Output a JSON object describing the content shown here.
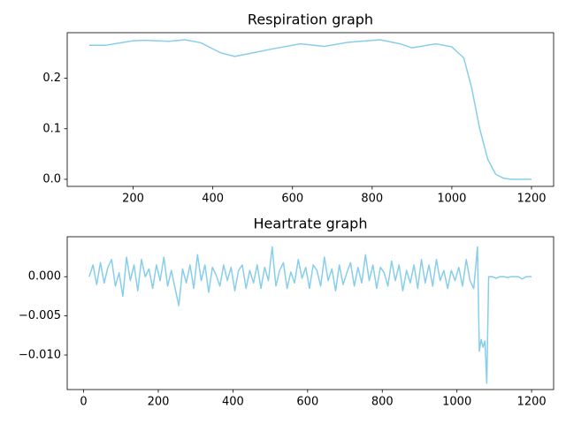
{
  "chart_data": [
    {
      "type": "line",
      "title": "Respiration graph",
      "color": "#87ceeb",
      "x": [
        90,
        130,
        200,
        230,
        290,
        330,
        370,
        420,
        455,
        500,
        550,
        620,
        680,
        740,
        820,
        870,
        900,
        960,
        1000,
        1030,
        1050,
        1070,
        1090,
        1110,
        1130,
        1150,
        1200
      ],
      "values": [
        0.265,
        0.265,
        0.274,
        0.275,
        0.273,
        0.276,
        0.27,
        0.25,
        0.243,
        0.25,
        0.258,
        0.268,
        0.263,
        0.271,
        0.276,
        0.268,
        0.26,
        0.268,
        0.262,
        0.24,
        0.18,
        0.1,
        0.04,
        0.01,
        0.002,
        0,
        0
      ],
      "xlim": [
        34.5,
        1255.5
      ],
      "ylim": [
        -0.014,
        0.29
      ],
      "xticks": [
        200,
        400,
        600,
        800,
        1000,
        1200
      ],
      "yticks": [
        {
          "value": 0,
          "label": "0.0"
        },
        0.1,
        0.2
      ]
    },
    {
      "type": "line",
      "title": "Heartrate graph",
      "color": "#87ceeb",
      "x": [
        15,
        25,
        35,
        45,
        55,
        65,
        75,
        85,
        95,
        105,
        115,
        125,
        135,
        145,
        155,
        165,
        175,
        185,
        195,
        205,
        215,
        225,
        235,
        245,
        255,
        265,
        275,
        285,
        295,
        305,
        315,
        325,
        335,
        345,
        355,
        365,
        375,
        385,
        395,
        405,
        415,
        425,
        435,
        445,
        455,
        465,
        475,
        485,
        495,
        505,
        515,
        525,
        535,
        545,
        555,
        565,
        575,
        585,
        595,
        605,
        615,
        625,
        635,
        645,
        655,
        665,
        675,
        685,
        695,
        705,
        715,
        725,
        735,
        745,
        755,
        765,
        775,
        785,
        795,
        805,
        815,
        825,
        835,
        845,
        855,
        865,
        875,
        885,
        895,
        905,
        915,
        925,
        935,
        945,
        955,
        965,
        975,
        985,
        995,
        1005,
        1015,
        1025,
        1035,
        1045,
        1055,
        1060,
        1065,
        1070,
        1075,
        1080,
        1085,
        1095,
        1105,
        1115,
        1125,
        1135,
        1145,
        1155,
        1165,
        1175,
        1185,
        1200
      ],
      "values": [
        0.0,
        0.0015,
        -0.001,
        0.0018,
        -0.0008,
        0.0012,
        0.0022,
        -0.0012,
        0.0005,
        -0.0025,
        0.0025,
        -0.0005,
        0.0015,
        -0.0018,
        0.0022,
        0.0,
        0.001,
        -0.0015,
        0.0015,
        -0.0005,
        0.0025,
        -0.0012,
        0.0008,
        -0.0015,
        -0.0037,
        0.001,
        -0.0008,
        0.0015,
        -0.0015,
        0.0028,
        -0.0005,
        0.0015,
        -0.002,
        0.0012,
        0.0002,
        -0.0012,
        0.0015,
        -0.0005,
        0.0012,
        -0.0018,
        0.0008,
        0.0015,
        -0.0015,
        0.0008,
        -0.0008,
        0.0015,
        -0.0015,
        0.0012,
        -0.0005,
        0.0038,
        -0.0012,
        0.0008,
        0.0018,
        -0.0015,
        0.0006,
        -0.0008,
        0.0022,
        -0.0002,
        0.0012,
        -0.0015,
        0.0015,
        0.0008,
        -0.0012,
        0.0025,
        -0.0005,
        0.001,
        -0.0018,
        0.0015,
        -0.001,
        0.0005,
        0.0018,
        -0.0012,
        0.0012,
        -0.0008,
        0.0028,
        -0.0005,
        0.0015,
        -0.0015,
        0.0012,
        0.0005,
        -0.0012,
        0.002,
        -0.0005,
        0.0015,
        -0.0018,
        0.0008,
        -0.0008,
        0.0015,
        -0.0015,
        0.0022,
        -0.0008,
        0.0015,
        -0.0012,
        0.0022,
        -0.0005,
        0.0008,
        -0.0015,
        0.0008,
        -0.0005,
        0.0012,
        -0.0012,
        0.0022,
        -0.0005,
        -0.0015,
        0.0038,
        -0.0095,
        -0.008,
        -0.009,
        -0.0082,
        -0.0136,
        0.0,
        0.0,
        -0.0002,
        0.0,
        0.0,
        -0.0001,
        0.0,
        0.0,
        0.0,
        -0.0003,
        0.0,
        0.0
      ],
      "xlim": [
        -44,
        1259
      ],
      "ylim": [
        -0.0144,
        0.0051
      ],
      "xticks": [
        0,
        200,
        400,
        600,
        800,
        1000,
        1200
      ],
      "yticks": [
        {
          "value": 0,
          "label": "0.000"
        },
        {
          "value": -0.005,
          "label": "−0.005"
        },
        {
          "value": -0.01,
          "label": "−0.010"
        }
      ]
    }
  ]
}
